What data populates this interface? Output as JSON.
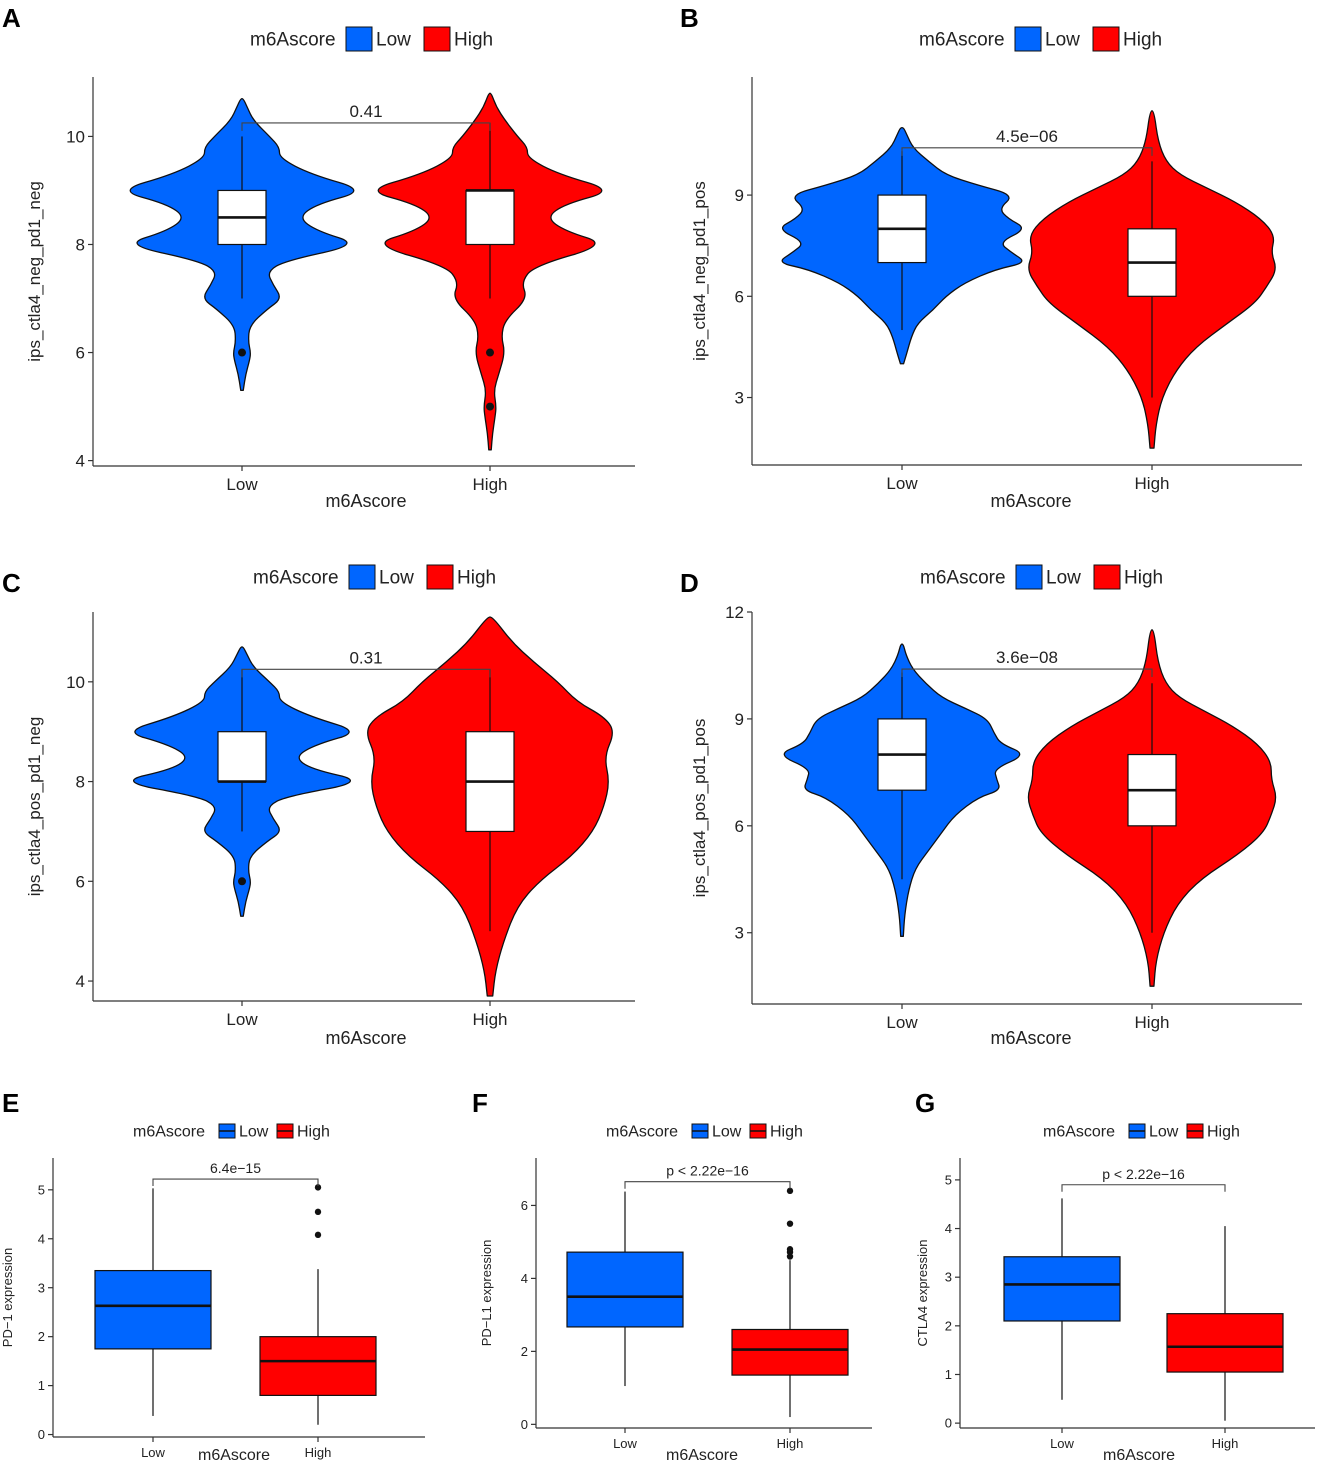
{
  "colors": {
    "low": "#0066FF",
    "high": "#FF0000",
    "outline": "#111111",
    "box": "#FFFFFF"
  },
  "chart_data": [
    {
      "panel": "A",
      "type": "violin",
      "legend_title": "m6Ascore",
      "legend_items": [
        "Low",
        "High"
      ],
      "xlabel": "m6Ascore",
      "ylabel": "ips_ctla4_neg_pd1_neg",
      "categories": [
        "Low",
        "High"
      ],
      "ylim": [
        3.9,
        11.1
      ],
      "yticks": [
        4,
        6,
        8,
        10
      ],
      "pvalue": "0.41",
      "bracket_y": 10.25,
      "series": [
        {
          "name": "Low",
          "q1": 8,
          "median": 8.5,
          "q3": 9,
          "whisker_low": 7,
          "whisker_high": 10,
          "outliers": [
            6
          ],
          "violin_min": 5.3,
          "violin_max": 10.7,
          "density": [
            [
              5.3,
              0.01
            ],
            [
              5.6,
              0.03
            ],
            [
              5.85,
              0.06
            ],
            [
              6,
              0.07
            ],
            [
              6.2,
              0.05
            ],
            [
              6.5,
              0.06
            ],
            [
              6.8,
              0.2
            ],
            [
              7,
              0.32
            ],
            [
              7.25,
              0.25
            ],
            [
              7.5,
              0.2
            ],
            [
              7.7,
              0.35
            ],
            [
              8,
              0.95
            ],
            [
              8.25,
              0.6
            ],
            [
              8.5,
              0.45
            ],
            [
              8.75,
              0.6
            ],
            [
              9,
              1.0
            ],
            [
              9.3,
              0.55
            ],
            [
              9.6,
              0.3
            ],
            [
              9.8,
              0.3
            ],
            [
              10,
              0.22
            ],
            [
              10.3,
              0.09
            ],
            [
              10.55,
              0.04
            ],
            [
              10.7,
              0.01
            ]
          ]
        },
        {
          "name": "High",
          "q1": 8,
          "median": 9,
          "q3": 9,
          "whisker_low": 7,
          "whisker_high": 10.25,
          "outliers": [
            6,
            5
          ],
          "violin_min": 4.2,
          "violin_max": 10.8,
          "density": [
            [
              4.2,
              0.01
            ],
            [
              4.5,
              0.02
            ],
            [
              4.8,
              0.04
            ],
            [
              5,
              0.05
            ],
            [
              5.3,
              0.03
            ],
            [
              5.6,
              0.07
            ],
            [
              6,
              0.12
            ],
            [
              6.3,
              0.09
            ],
            [
              6.6,
              0.12
            ],
            [
              7,
              0.3
            ],
            [
              7.3,
              0.25
            ],
            [
              7.6,
              0.35
            ],
            [
              8,
              0.95
            ],
            [
              8.25,
              0.6
            ],
            [
              8.5,
              0.45
            ],
            [
              8.75,
              0.6
            ],
            [
              9,
              1.0
            ],
            [
              9.3,
              0.55
            ],
            [
              9.6,
              0.3
            ],
            [
              9.8,
              0.3
            ],
            [
              10,
              0.22
            ],
            [
              10.3,
              0.12
            ],
            [
              10.55,
              0.05
            ],
            [
              10.8,
              0.01
            ]
          ]
        }
      ]
    },
    {
      "panel": "B",
      "type": "violin",
      "legend_title": "m6Ascore",
      "legend_items": [
        "Low",
        "High"
      ],
      "xlabel": "m6Ascore",
      "ylabel": "ips_ctla4_neg_pd1_pos",
      "categories": [
        "Low",
        "High"
      ],
      "ylim": [
        1.0,
        12.5
      ],
      "yticks": [
        3,
        6,
        9
      ],
      "pvalue": "4.5e−06",
      "bracket_y": 10.4,
      "series": [
        {
          "name": "Low",
          "q1": 7,
          "median": 8,
          "q3": 9,
          "whisker_low": 5,
          "whisker_high": 10.3,
          "outliers": [],
          "violin_min": 4.0,
          "violin_max": 11.0,
          "density": [
            [
              4.0,
              0.01
            ],
            [
              4.3,
              0.03
            ],
            [
              4.8,
              0.06
            ],
            [
              5.2,
              0.1
            ],
            [
              5.6,
              0.2
            ],
            [
              6.0,
              0.28
            ],
            [
              6.4,
              0.4
            ],
            [
              6.8,
              0.6
            ],
            [
              7.0,
              0.8
            ],
            [
              7.3,
              0.7
            ],
            [
              7.6,
              0.62
            ],
            [
              8.0,
              0.8
            ],
            [
              8.3,
              0.68
            ],
            [
              8.6,
              0.62
            ],
            [
              9.0,
              0.72
            ],
            [
              9.3,
              0.48
            ],
            [
              9.6,
              0.28
            ],
            [
              10.0,
              0.17
            ],
            [
              10.4,
              0.07
            ],
            [
              10.8,
              0.03
            ],
            [
              11.0,
              0.01
            ]
          ]
        },
        {
          "name": "High",
          "q1": 6,
          "median": 7,
          "q3": 8,
          "whisker_low": 3,
          "whisker_high": 10,
          "outliers": [],
          "violin_min": 1.5,
          "violin_max": 11.5,
          "density": [
            [
              1.5,
              0.01
            ],
            [
              2.2,
              0.02
            ],
            [
              3.0,
              0.05
            ],
            [
              3.8,
              0.12
            ],
            [
              4.5,
              0.22
            ],
            [
              5.2,
              0.38
            ],
            [
              5.8,
              0.52
            ],
            [
              6.3,
              0.58
            ],
            [
              6.8,
              0.63
            ],
            [
              7.3,
              0.6
            ],
            [
              7.8,
              0.62
            ],
            [
              8.3,
              0.55
            ],
            [
              8.8,
              0.42
            ],
            [
              9.2,
              0.28
            ],
            [
              9.6,
              0.14
            ],
            [
              10.0,
              0.07
            ],
            [
              10.6,
              0.03
            ],
            [
              11.5,
              0.01
            ]
          ]
        }
      ]
    },
    {
      "panel": "C",
      "type": "violin",
      "legend_title": "m6Ascore",
      "legend_items": [
        "Low",
        "High"
      ],
      "xlabel": "m6Ascore",
      "ylabel": "ips_ctla4_pos_pd1_neg",
      "categories": [
        "Low",
        "High"
      ],
      "ylim": [
        3.6,
        11.4
      ],
      "yticks": [
        4,
        6,
        8,
        10
      ],
      "pvalue": "0.31",
      "bracket_y": 10.25,
      "series": [
        {
          "name": "Low",
          "q1": 8,
          "median": 8,
          "q3": 9,
          "whisker_low": 7,
          "whisker_high": 10.25,
          "outliers": [
            6
          ],
          "violin_min": 5.3,
          "violin_max": 10.7,
          "density": [
            [
              5.3,
              0.01
            ],
            [
              5.6,
              0.03
            ],
            [
              5.85,
              0.06
            ],
            [
              6,
              0.07
            ],
            [
              6.2,
              0.05
            ],
            [
              6.5,
              0.06
            ],
            [
              6.8,
              0.2
            ],
            [
              7,
              0.32
            ],
            [
              7.25,
              0.25
            ],
            [
              7.5,
              0.2
            ],
            [
              7.7,
              0.35
            ],
            [
              8,
              1.0
            ],
            [
              8.25,
              0.55
            ],
            [
              8.5,
              0.42
            ],
            [
              8.75,
              0.6
            ],
            [
              9,
              0.95
            ],
            [
              9.3,
              0.55
            ],
            [
              9.6,
              0.3
            ],
            [
              9.8,
              0.3
            ],
            [
              10,
              0.22
            ],
            [
              10.3,
              0.09
            ],
            [
              10.55,
              0.04
            ],
            [
              10.7,
              0.01
            ]
          ]
        },
        {
          "name": "High",
          "q1": 7,
          "median": 8,
          "q3": 9,
          "whisker_low": 5,
          "whisker_high": 10.25,
          "outliers": [],
          "violin_min": 3.7,
          "violin_max": 11.3,
          "density": [
            [
              3.7,
              0.01
            ],
            [
              4.2,
              0.02
            ],
            [
              4.8,
              0.05
            ],
            [
              5.5,
              0.1
            ],
            [
              6.0,
              0.18
            ],
            [
              6.5,
              0.3
            ],
            [
              7.0,
              0.38
            ],
            [
              7.5,
              0.42
            ],
            [
              8.0,
              0.44
            ],
            [
              8.5,
              0.42
            ],
            [
              9.0,
              0.46
            ],
            [
              9.3,
              0.42
            ],
            [
              9.6,
              0.32
            ],
            [
              10.0,
              0.25
            ],
            [
              10.4,
              0.16
            ],
            [
              10.8,
              0.08
            ],
            [
              11.3,
              0.01
            ]
          ]
        }
      ]
    },
    {
      "panel": "D",
      "type": "violin",
      "legend_title": "m6Ascore",
      "legend_items": [
        "Low",
        "High"
      ],
      "xlabel": "m6Ascore",
      "ylabel": "ips_ctla4_pos_pd1_pos",
      "categories": [
        "Low",
        "High"
      ],
      "ylim": [
        1.0,
        12.0
      ],
      "yticks": [
        3,
        6,
        9,
        12
      ],
      "pvalue": "3.6e−08",
      "bracket_y": 10.4,
      "series": [
        {
          "name": "Low",
          "q1": 7,
          "median": 8,
          "q3": 9,
          "whisker_low": 4.5,
          "whisker_high": 10.3,
          "outliers": [],
          "violin_min": 2.9,
          "violin_max": 11.1,
          "density": [
            [
              2.9,
              0.01
            ],
            [
              3.5,
              0.02
            ],
            [
              4.2,
              0.05
            ],
            [
              4.8,
              0.1
            ],
            [
              5.3,
              0.2
            ],
            [
              5.8,
              0.3
            ],
            [
              6.3,
              0.4
            ],
            [
              6.8,
              0.58
            ],
            [
              7.0,
              0.75
            ],
            [
              7.3,
              0.72
            ],
            [
              7.6,
              0.7
            ],
            [
              8.0,
              0.95
            ],
            [
              8.3,
              0.75
            ],
            [
              8.6,
              0.7
            ],
            [
              9.0,
              0.65
            ],
            [
              9.3,
              0.48
            ],
            [
              9.6,
              0.3
            ],
            [
              10.0,
              0.18
            ],
            [
              10.4,
              0.08
            ],
            [
              10.8,
              0.03
            ],
            [
              11.1,
              0.01
            ]
          ]
        },
        {
          "name": "High",
          "q1": 6,
          "median": 7,
          "q3": 8,
          "whisker_low": 3,
          "whisker_high": 10,
          "outliers": [],
          "violin_min": 1.5,
          "violin_max": 11.5,
          "density": [
            [
              1.5,
              0.01
            ],
            [
              2.2,
              0.02
            ],
            [
              3.0,
              0.06
            ],
            [
              3.8,
              0.13
            ],
            [
              4.5,
              0.25
            ],
            [
              5.2,
              0.45
            ],
            [
              5.8,
              0.58
            ],
            [
              6.3,
              0.62
            ],
            [
              6.8,
              0.65
            ],
            [
              7.3,
              0.62
            ],
            [
              7.8,
              0.62
            ],
            [
              8.3,
              0.55
            ],
            [
              8.8,
              0.42
            ],
            [
              9.2,
              0.28
            ],
            [
              9.6,
              0.14
            ],
            [
              10.0,
              0.07
            ],
            [
              10.6,
              0.03
            ],
            [
              11.5,
              0.01
            ]
          ]
        }
      ]
    },
    {
      "panel": "E",
      "type": "box",
      "legend_title": "m6Ascore",
      "legend_items": [
        "Low",
        "High"
      ],
      "xlabel": "m6Ascore",
      "ylabel": "PD−1 expression",
      "categories": [
        "Low",
        "High"
      ],
      "ylim": [
        -0.05,
        5.65
      ],
      "yticks": [
        0,
        1,
        2,
        3,
        4,
        5
      ],
      "pvalue": "6.4e−15",
      "bracket_y": 5.22,
      "series": [
        {
          "name": "Low",
          "q1": 1.75,
          "median": 2.63,
          "q3": 3.35,
          "whisker_low": 0.38,
          "whisker_high": 5.03,
          "outliers": []
        },
        {
          "name": "High",
          "q1": 0.8,
          "median": 1.5,
          "q3": 2.0,
          "whisker_low": 0.2,
          "whisker_high": 3.38,
          "outliers": [
            4.08,
            4.55,
            5.05
          ]
        }
      ]
    },
    {
      "panel": "F",
      "type": "box",
      "legend_title": "m6Ascore",
      "legend_items": [
        "Low",
        "High"
      ],
      "xlabel": "m6Ascore",
      "ylabel": "PD−L1 expression",
      "categories": [
        "Low",
        "High"
      ],
      "ylim": [
        -0.1,
        7.3
      ],
      "yticks": [
        0,
        2,
        4,
        6
      ],
      "pvalue": "p < 2.22e−16",
      "bracket_y": 6.65,
      "series": [
        {
          "name": "Low",
          "q1": 2.67,
          "median": 3.5,
          "q3": 4.72,
          "whisker_low": 1.05,
          "whisker_high": 6.38,
          "outliers": []
        },
        {
          "name": "High",
          "q1": 1.35,
          "median": 2.05,
          "q3": 2.6,
          "whisker_low": 0.2,
          "whisker_high": 4.5,
          "outliers": [
            4.6,
            4.72,
            4.8,
            5.5,
            6.4
          ]
        }
      ]
    },
    {
      "panel": "G",
      "type": "box",
      "legend_title": "m6Ascore",
      "legend_items": [
        "Low",
        "High"
      ],
      "xlabel": "m6Ascore",
      "ylabel": "CTLA4 expression",
      "categories": [
        "Low",
        "High"
      ],
      "ylim": [
        -0.1,
        5.45
      ],
      "yticks": [
        0,
        1,
        2,
        3,
        4,
        5
      ],
      "pvalue": "p < 2.22e−16",
      "bracket_y": 4.9,
      "series": [
        {
          "name": "Low",
          "q1": 2.1,
          "median": 2.85,
          "q3": 3.42,
          "whisker_low": 0.48,
          "whisker_high": 4.62,
          "outliers": []
        },
        {
          "name": "High",
          "q1": 1.05,
          "median": 1.57,
          "q3": 2.25,
          "whisker_low": 0.05,
          "whisker_high": 4.05,
          "outliers": []
        }
      ]
    }
  ]
}
